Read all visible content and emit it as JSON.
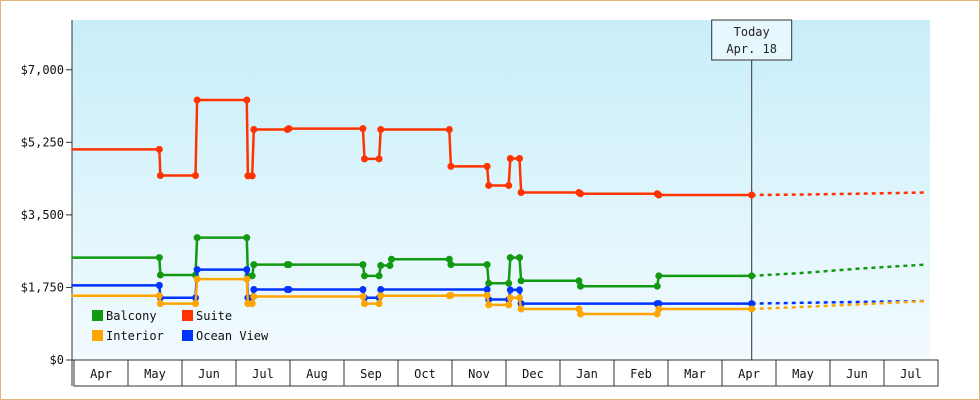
{
  "chart_data": {
    "type": "line",
    "y_ticks": [
      0,
      1750,
      3500,
      5250,
      7000
    ],
    "y_tick_labels": [
      "$0",
      "$1,750",
      "$3,500",
      "$5,250",
      "$7,000"
    ],
    "ylim": [
      0,
      8200
    ],
    "month_labels": [
      "Apr",
      "May",
      "Jun",
      "Jul",
      "Aug",
      "Sep",
      "Oct",
      "Nov",
      "Dec",
      "Jan",
      "Feb",
      "Mar",
      "Apr",
      "May",
      "Jun",
      "Jul"
    ],
    "today": {
      "line1": "Today",
      "line2": "Apr. 18",
      "month_index": 12.55
    },
    "legend": {
      "position": "bottom-left",
      "items": [
        {
          "name": "Balcony",
          "color": "#119911"
        },
        {
          "name": "Suite",
          "color": "#ff3300"
        },
        {
          "name": "Interior",
          "color": "#ffa500"
        },
        {
          "name": "Ocean View",
          "color": "#0033ff"
        }
      ]
    },
    "series": [
      {
        "name": "Suite",
        "color": "#ff3300",
        "points": [
          [
            -0.05,
            5080
          ],
          [
            1.58,
            5080
          ],
          [
            1.6,
            4450
          ],
          [
            2.25,
            4450
          ],
          [
            2.28,
            6270
          ],
          [
            3.2,
            6270
          ],
          [
            3.22,
            4440
          ],
          [
            3.3,
            4440
          ],
          [
            3.33,
            5560
          ],
          [
            3.95,
            5560
          ],
          [
            3.98,
            5580
          ],
          [
            5.35,
            5580
          ],
          [
            5.38,
            4850
          ],
          [
            5.65,
            4850
          ],
          [
            5.68,
            5560
          ],
          [
            6.95,
            5560
          ],
          [
            6.98,
            4670
          ],
          [
            7.65,
            4670
          ],
          [
            7.68,
            4210
          ],
          [
            8.05,
            4210
          ],
          [
            8.08,
            4860
          ],
          [
            8.25,
            4860
          ],
          [
            8.28,
            4040
          ],
          [
            9.35,
            4040
          ],
          [
            9.38,
            4010
          ],
          [
            10.8,
            4010
          ],
          [
            10.83,
            3980
          ],
          [
            12.55,
            3980
          ]
        ],
        "projection": [
          [
            12.55,
            3980
          ],
          [
            13.5,
            3990
          ],
          [
            14.5,
            4010
          ],
          [
            15.75,
            4040
          ]
        ]
      },
      {
        "name": "Balcony",
        "color": "#119911",
        "points": [
          [
            -0.05,
            2470
          ],
          [
            1.58,
            2470
          ],
          [
            1.6,
            2050
          ],
          [
            2.25,
            2050
          ],
          [
            2.28,
            2950
          ],
          [
            3.2,
            2950
          ],
          [
            3.22,
            2030
          ],
          [
            3.3,
            2030
          ],
          [
            3.33,
            2300
          ],
          [
            3.95,
            2300
          ],
          [
            3.98,
            2300
          ],
          [
            5.35,
            2300
          ],
          [
            5.38,
            2030
          ],
          [
            5.65,
            2030
          ],
          [
            5.68,
            2280
          ],
          [
            5.85,
            2280
          ],
          [
            5.88,
            2430
          ],
          [
            6.95,
            2430
          ],
          [
            6.98,
            2300
          ],
          [
            7.65,
            2300
          ],
          [
            7.68,
            1850
          ],
          [
            8.05,
            1850
          ],
          [
            8.08,
            2470
          ],
          [
            8.25,
            2470
          ],
          [
            8.28,
            1910
          ],
          [
            9.35,
            1910
          ],
          [
            9.38,
            1780
          ],
          [
            10.8,
            1780
          ],
          [
            10.83,
            2030
          ],
          [
            12.55,
            2030
          ]
        ],
        "projection": [
          [
            12.55,
            2030
          ],
          [
            13.5,
            2100
          ],
          [
            14.5,
            2200
          ],
          [
            15.75,
            2300
          ]
        ]
      },
      {
        "name": "Ocean View",
        "color": "#0033ff",
        "points": [
          [
            -0.05,
            1800
          ],
          [
            1.58,
            1800
          ],
          [
            1.6,
            1500
          ],
          [
            2.25,
            1500
          ],
          [
            2.28,
            2180
          ],
          [
            3.2,
            2180
          ],
          [
            3.22,
            1500
          ],
          [
            3.3,
            1500
          ],
          [
            3.33,
            1700
          ],
          [
            3.95,
            1700
          ],
          [
            3.98,
            1700
          ],
          [
            5.35,
            1700
          ],
          [
            5.38,
            1500
          ],
          [
            5.65,
            1500
          ],
          [
            5.68,
            1700
          ],
          [
            7.65,
            1700
          ],
          [
            7.68,
            1460
          ],
          [
            8.05,
            1460
          ],
          [
            8.08,
            1690
          ],
          [
            8.25,
            1690
          ],
          [
            8.28,
            1360
          ],
          [
            10.8,
            1360
          ],
          [
            10.83,
            1360
          ],
          [
            12.55,
            1360
          ]
        ],
        "projection": [
          [
            12.55,
            1360
          ],
          [
            13.5,
            1380
          ],
          [
            14.5,
            1400
          ],
          [
            15.75,
            1420
          ]
        ]
      },
      {
        "name": "Interior",
        "color": "#ffa500",
        "points": [
          [
            -0.05,
            1550
          ],
          [
            1.58,
            1550
          ],
          [
            1.6,
            1360
          ],
          [
            2.25,
            1360
          ],
          [
            2.28,
            1950
          ],
          [
            3.2,
            1950
          ],
          [
            3.22,
            1360
          ],
          [
            3.3,
            1360
          ],
          [
            3.33,
            1530
          ],
          [
            5.35,
            1530
          ],
          [
            5.38,
            1360
          ],
          [
            5.65,
            1360
          ],
          [
            5.68,
            1550
          ],
          [
            6.95,
            1550
          ],
          [
            6.98,
            1560
          ],
          [
            7.65,
            1560
          ],
          [
            7.68,
            1330
          ],
          [
            8.05,
            1330
          ],
          [
            8.08,
            1500
          ],
          [
            8.25,
            1500
          ],
          [
            8.28,
            1230
          ],
          [
            9.35,
            1230
          ],
          [
            9.38,
            1110
          ],
          [
            10.8,
            1110
          ],
          [
            10.83,
            1230
          ],
          [
            12.55,
            1230
          ]
        ],
        "projection": [
          [
            12.55,
            1230
          ],
          [
            13.5,
            1280
          ],
          [
            14.5,
            1340
          ],
          [
            15.75,
            1420
          ]
        ]
      }
    ]
  }
}
